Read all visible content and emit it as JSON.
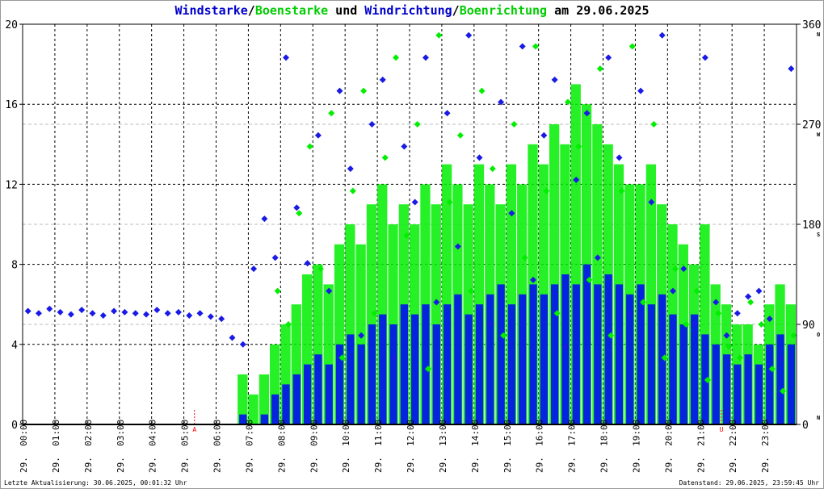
{
  "title": {
    "p1": "Windstarke",
    "s1": "/",
    "p2": "Boenstarke",
    "p3": " und ",
    "p4": "Windrichtung",
    "s2": "/",
    "p5": "Boenrichtung",
    "p6": " am 29.06.2025"
  },
  "footer": {
    "left": "Letzte Aktualisierung: 30.06.2025, 00:01:32 Uhr",
    "right": "Datenstand: 29.06.2025, 23:59:45 Uhr"
  },
  "colors": {
    "speed": "#0000ff",
    "gust": "#00ee00",
    "dir": "#1a1ae6",
    "gustdir": "#00ee00",
    "marker": "#ff0000"
  },
  "chart_data": {
    "type": "bar",
    "title": "Windstarke/Boenstarke und Windrichtung/Boenrichtung am 29.06.2025",
    "ylim": [
      0,
      20
    ],
    "y_ticks": [
      "0",
      "4",
      "8",
      "12",
      "16",
      "20"
    ],
    "y2lim": [
      0,
      360
    ],
    "y2_ticks": [
      "0",
      "90",
      "180",
      "270",
      "360"
    ],
    "y2_compass": [
      "N",
      "O",
      "S",
      "W",
      "N"
    ],
    "x_ticks": [
      "29. 00:00",
      "29. 01:00",
      "29. 02:00",
      "29. 03:00",
      "29. 04:00",
      "29. 05:00",
      "29. 06:00",
      "29. 07:00",
      "29. 08:00",
      "29. 09:00",
      "29. 10:00",
      "29. 11:00",
      "29. 12:00",
      "29. 13:00",
      "29. 14:00",
      "29. 15:00",
      "29. 16:00",
      "29. 17:00",
      "29. 18:00",
      "29. 19:00",
      "29. 20:00",
      "29. 21:00",
      "29. 22:00",
      "29. 23:00"
    ],
    "step_minutes": 20,
    "markers": [
      {
        "hour": 5.33,
        "label": "A"
      },
      {
        "hour": 21.67,
        "label": "U"
      }
    ],
    "series": [
      {
        "name": "Windstarke",
        "axis": "left",
        "kind": "bar",
        "values": [
          0,
          0,
          0,
          0,
          0,
          0,
          0,
          0,
          0,
          0,
          0,
          0,
          0,
          0,
          0,
          0,
          0,
          0,
          0,
          0,
          0.5,
          0,
          0.5,
          1.5,
          2,
          2.5,
          3,
          3.5,
          3,
          4,
          4.5,
          4,
          5,
          5.5,
          5,
          6,
          5.5,
          6,
          5,
          6,
          6.5,
          5.5,
          6,
          6.5,
          7,
          6,
          6.5,
          7,
          6.5,
          7,
          7.5,
          7,
          8,
          7,
          7.5,
          7,
          6.5,
          7,
          6,
          6.5,
          5.5,
          5,
          5.5,
          4.5,
          4,
          3.5,
          3,
          3.5,
          3,
          4,
          4.5,
          4
        ]
      },
      {
        "name": "Boenstarke",
        "axis": "left",
        "kind": "bar",
        "values": [
          0,
          0,
          0,
          0,
          0,
          0,
          0,
          0,
          0,
          0,
          0,
          0,
          0,
          0,
          0,
          0,
          0,
          0,
          0,
          0,
          2.5,
          1.5,
          2.5,
          4,
          5,
          6,
          7.5,
          8,
          7,
          9,
          10,
          9,
          11,
          12,
          10,
          11,
          10,
          12,
          11,
          13,
          12,
          11,
          13,
          12,
          11,
          13,
          12,
          14,
          13,
          15,
          14,
          17,
          16,
          15,
          14,
          13,
          12,
          12,
          13,
          11,
          10,
          9,
          8,
          10,
          7,
          6,
          5,
          5,
          4,
          6,
          7,
          6
        ]
      },
      {
        "name": "Windrichtung",
        "axis": "right",
        "kind": "scatter",
        "values": [
          102,
          100,
          104,
          101,
          99,
          103,
          100,
          98,
          102,
          101,
          100,
          99,
          103,
          100,
          101,
          98,
          100,
          97,
          95,
          78,
          72,
          140,
          185,
          150,
          330,
          195,
          145,
          260,
          120,
          300,
          230,
          80,
          270,
          310,
          60,
          250,
          200,
          330,
          110,
          280,
          160,
          350,
          240,
          90,
          290,
          190,
          340,
          130,
          260,
          310,
          70,
          220,
          280,
          150,
          330,
          240,
          100,
          300,
          200,
          350,
          120,
          140,
          90,
          330,
          110,
          80,
          100,
          115,
          120,
          95,
          60,
          320
        ]
      },
      {
        "name": "Boenrichtung",
        "axis": "right",
        "kind": "scatter",
        "values": [
          null,
          null,
          null,
          null,
          null,
          null,
          null,
          null,
          null,
          null,
          null,
          null,
          null,
          null,
          null,
          null,
          null,
          null,
          null,
          null,
          null,
          null,
          null,
          120,
          90,
          190,
          250,
          140,
          280,
          60,
          210,
          300,
          100,
          240,
          330,
          170,
          270,
          50,
          350,
          200,
          260,
          120,
          300,
          230,
          80,
          270,
          150,
          340,
          210,
          100,
          290,
          250,
          130,
          320,
          80,
          210,
          340,
          110,
          270,
          60,
          140,
          90,
          120,
          40,
          100,
          70,
          60,
          110,
          90,
          50,
          30,
          80
        ]
      }
    ]
  }
}
